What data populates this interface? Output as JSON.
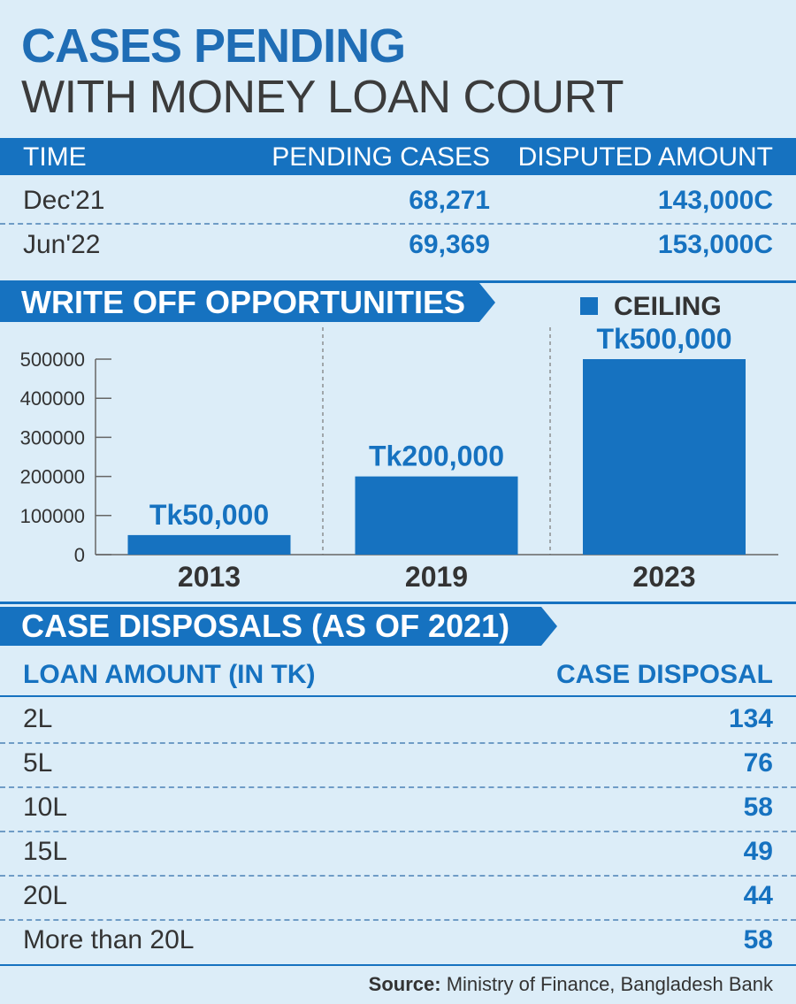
{
  "title_line1": "CASES PENDING",
  "title_line2": "WITH MONEY LOAN COURT",
  "pending_table": {
    "headers": [
      "TIME",
      "PENDING CASES",
      "DISPUTED AMOUNT"
    ],
    "rows": [
      {
        "time": "Dec'21",
        "pending": "68,271",
        "amount": "143,000C"
      },
      {
        "time": "Jun'22",
        "pending": "69,369",
        "amount": "153,000C"
      }
    ]
  },
  "write_off_title": "WRITE OFF OPPORTUNITIES",
  "chart_data": {
    "type": "bar",
    "categories": [
      "2013",
      "2019",
      "2023"
    ],
    "series": [
      {
        "name": "CEILING",
        "values": [
          50000,
          200000,
          500000
        ]
      }
    ],
    "data_labels": [
      "Tk50,000",
      "Tk200,000",
      "Tk500,000"
    ],
    "yticks": [
      0,
      100000,
      200000,
      300000,
      400000,
      500000
    ],
    "ylim": [
      0,
      500000
    ],
    "legend": "top-right",
    "grid": false,
    "color": "#1672c0"
  },
  "disposal_title": "CASE DISPOSALS (AS OF 2021)",
  "disposal_table": {
    "headers": [
      "LOAN AMOUNT (IN TK)",
      "CASE DISPOSAL"
    ],
    "rows": [
      {
        "amount": "2L",
        "disposal": "134"
      },
      {
        "amount": "5L",
        "disposal": "76"
      },
      {
        "amount": "10L",
        "disposal": "58"
      },
      {
        "amount": "15L",
        "disposal": "49"
      },
      {
        "amount": "20L",
        "disposal": "44"
      },
      {
        "amount": "More than 20L",
        "disposal": "58"
      }
    ]
  },
  "source": {
    "label": "Source:",
    "text": " Ministry of Finance, Bangladesh Bank"
  }
}
